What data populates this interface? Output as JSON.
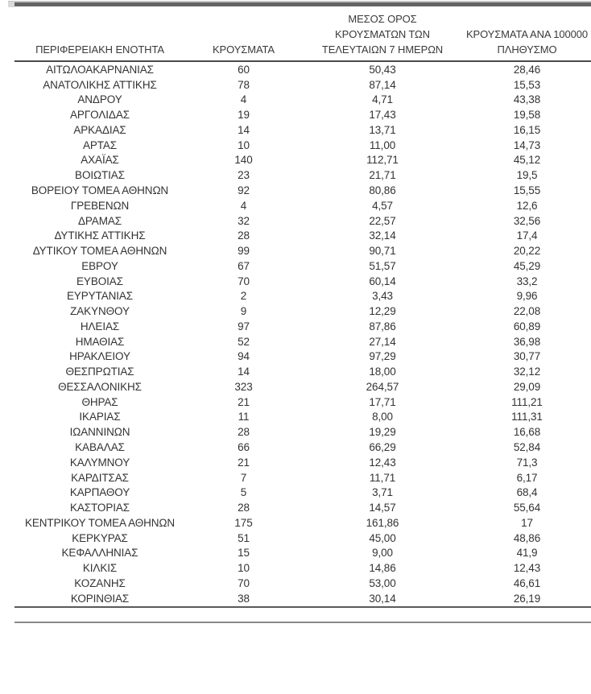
{
  "decor": {
    "top_bar_color": "#646464",
    "top_bar_light_color": "#c4c4c4",
    "header_rule_color": "#4a4a4a",
    "bottom_rule_color": "#888888"
  },
  "table": {
    "headers": {
      "region": "ΠΕΡΙΦΕΡΕΙΑΚΗ ΕΝΟΤΗΤΑ",
      "cases": "ΚΡΟΥΣΜΑΤΑ",
      "avg7": "ΜΕΣΟΣ ΟΡΟΣ\nΚΡΟΥΣΜΑΤΩΝ ΤΩΝ\nΤΕΛΕΥΤΑΙΩΝ 7 ΗΜΕΡΩΝ",
      "per100k": "ΚΡΟΥΣΜΑΤΑ ΑΝΑ 100000\nΠΛΗΘΥΣΜΟ"
    },
    "rows": [
      {
        "region": "ΑΙΤΩΛΟΑΚΑΡΝΑΝΙΑΣ",
        "cases": "60",
        "avg7": "50,43",
        "per100k": "28,46"
      },
      {
        "region": "ΑΝΑΤΟΛΙΚΗΣ ΑΤΤΙΚΗΣ",
        "cases": "78",
        "avg7": "87,14",
        "per100k": "15,53"
      },
      {
        "region": "ΑΝΔΡΟΥ",
        "cases": "4",
        "avg7": "4,71",
        "per100k": "43,38"
      },
      {
        "region": "ΑΡΓΟΛΙΔΑΣ",
        "cases": "19",
        "avg7": "17,43",
        "per100k": "19,58"
      },
      {
        "region": "ΑΡΚΑΔΙΑΣ",
        "cases": "14",
        "avg7": "13,71",
        "per100k": "16,15"
      },
      {
        "region": "ΑΡΤΑΣ",
        "cases": "10",
        "avg7": "11,00",
        "per100k": "14,73"
      },
      {
        "region": "ΑΧΑΪΑΣ",
        "cases": "140",
        "avg7": "112,71",
        "per100k": "45,12"
      },
      {
        "region": "ΒΟΙΩΤΙΑΣ",
        "cases": "23",
        "avg7": "21,71",
        "per100k": "19,5"
      },
      {
        "region": "ΒΟΡΕΙΟΥ ΤΟΜΕΑ ΑΘΗΝΩΝ",
        "cases": "92",
        "avg7": "80,86",
        "per100k": "15,55"
      },
      {
        "region": "ΓΡΕΒΕΝΩΝ",
        "cases": "4",
        "avg7": "4,57",
        "per100k": "12,6"
      },
      {
        "region": "ΔΡΑΜΑΣ",
        "cases": "32",
        "avg7": "22,57",
        "per100k": "32,56"
      },
      {
        "region": "ΔΥΤΙΚΗΣ ΑΤΤΙΚΗΣ",
        "cases": "28",
        "avg7": "32,14",
        "per100k": "17,4"
      },
      {
        "region": "ΔΥΤΙΚΟΥ ΤΟΜΕΑ ΑΘΗΝΩΝ",
        "cases": "99",
        "avg7": "90,71",
        "per100k": "20,22"
      },
      {
        "region": "ΕΒΡΟΥ",
        "cases": "67",
        "avg7": "51,57",
        "per100k": "45,29"
      },
      {
        "region": "ΕΥΒΟΙΑΣ",
        "cases": "70",
        "avg7": "60,14",
        "per100k": "33,2"
      },
      {
        "region": "ΕΥΡΥΤΑΝΙΑΣ",
        "cases": "2",
        "avg7": "3,43",
        "per100k": "9,96"
      },
      {
        "region": "ΖΑΚΥΝΘΟΥ",
        "cases": "9",
        "avg7": "12,29",
        "per100k": "22,08"
      },
      {
        "region": "ΗΛΕΙΑΣ",
        "cases": "97",
        "avg7": "87,86",
        "per100k": "60,89"
      },
      {
        "region": "ΗΜΑΘΙΑΣ",
        "cases": "52",
        "avg7": "27,14",
        "per100k": "36,98"
      },
      {
        "region": "ΗΡΑΚΛΕΙΟΥ",
        "cases": "94",
        "avg7": "97,29",
        "per100k": "30,77"
      },
      {
        "region": "ΘΕΣΠΡΩΤΙΑΣ",
        "cases": "14",
        "avg7": "18,00",
        "per100k": "32,12"
      },
      {
        "region": "ΘΕΣΣΑΛΟΝΙΚΗΣ",
        "cases": "323",
        "avg7": "264,57",
        "per100k": "29,09"
      },
      {
        "region": "ΘΗΡΑΣ",
        "cases": "21",
        "avg7": "17,71",
        "per100k": "111,21"
      },
      {
        "region": "ΙΚΑΡΙΑΣ",
        "cases": "11",
        "avg7": "8,00",
        "per100k": "111,31"
      },
      {
        "region": "ΙΩΑΝΝΙΝΩΝ",
        "cases": "28",
        "avg7": "19,29",
        "per100k": "16,68"
      },
      {
        "region": "ΚΑΒΑΛΑΣ",
        "cases": "66",
        "avg7": "66,29",
        "per100k": "52,84"
      },
      {
        "region": "ΚΑΛΥΜΝΟΥ",
        "cases": "21",
        "avg7": "12,43",
        "per100k": "71,3"
      },
      {
        "region": "ΚΑΡΔΙΤΣΑΣ",
        "cases": "7",
        "avg7": "11,71",
        "per100k": "6,17"
      },
      {
        "region": "ΚΑΡΠΑΘΟΥ",
        "cases": "5",
        "avg7": "3,71",
        "per100k": "68,4"
      },
      {
        "region": "ΚΑΣΤΟΡΙΑΣ",
        "cases": "28",
        "avg7": "14,57",
        "per100k": "55,64"
      },
      {
        "region": "ΚΕΝΤΡΙΚΟΥ ΤΟΜΕΑ ΑΘΗΝΩΝ",
        "cases": "175",
        "avg7": "161,86",
        "per100k": "17"
      },
      {
        "region": "ΚΕΡΚΥΡΑΣ",
        "cases": "51",
        "avg7": "45,00",
        "per100k": "48,86"
      },
      {
        "region": "ΚΕΦΑΛΛΗΝΙΑΣ",
        "cases": "15",
        "avg7": "9,00",
        "per100k": "41,9"
      },
      {
        "region": "ΚΙΛΚΙΣ",
        "cases": "10",
        "avg7": "14,86",
        "per100k": "12,43"
      },
      {
        "region": "ΚΟΖΑΝΗΣ",
        "cases": "70",
        "avg7": "53,00",
        "per100k": "46,61"
      },
      {
        "region": "ΚΟΡΙΝΘΙΑΣ",
        "cases": "38",
        "avg7": "30,14",
        "per100k": "26,19"
      }
    ]
  }
}
